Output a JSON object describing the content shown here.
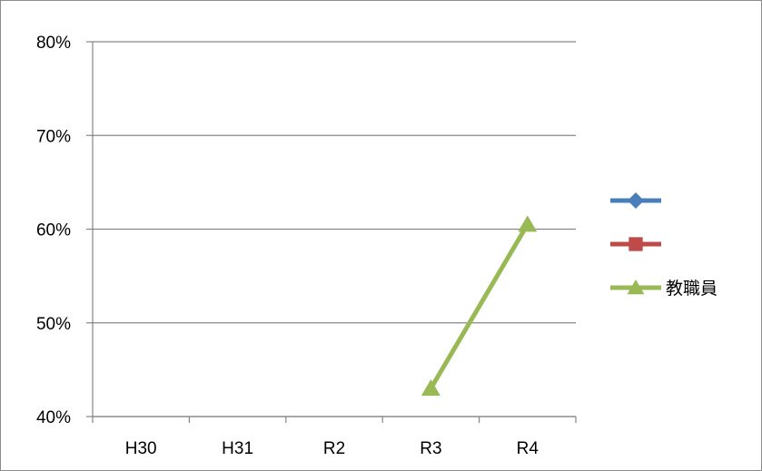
{
  "chart_data": {
    "type": "line",
    "categories": [
      "H30",
      "H31",
      "R2",
      "R3",
      "R4"
    ],
    "ylim": [
      0.4,
      0.8
    ],
    "yticks": [
      0.4,
      0.5,
      0.6,
      0.7,
      0.8
    ],
    "ytick_labels": [
      "40%",
      "50%",
      "60%",
      "70%",
      "80%"
    ],
    "grid": true,
    "legend_position": "right",
    "series": [
      {
        "name": "",
        "color": "#4a7ebb",
        "marker": "diamond",
        "values": [
          null,
          null,
          null,
          null,
          null
        ]
      },
      {
        "name": "",
        "color": "#be4b48",
        "marker": "square",
        "values": [
          null,
          null,
          null,
          null,
          null
        ]
      },
      {
        "name": "教職員",
        "color": "#98b954",
        "marker": "triangle",
        "values": [
          null,
          null,
          null,
          0.43,
          0.605
        ]
      }
    ]
  }
}
